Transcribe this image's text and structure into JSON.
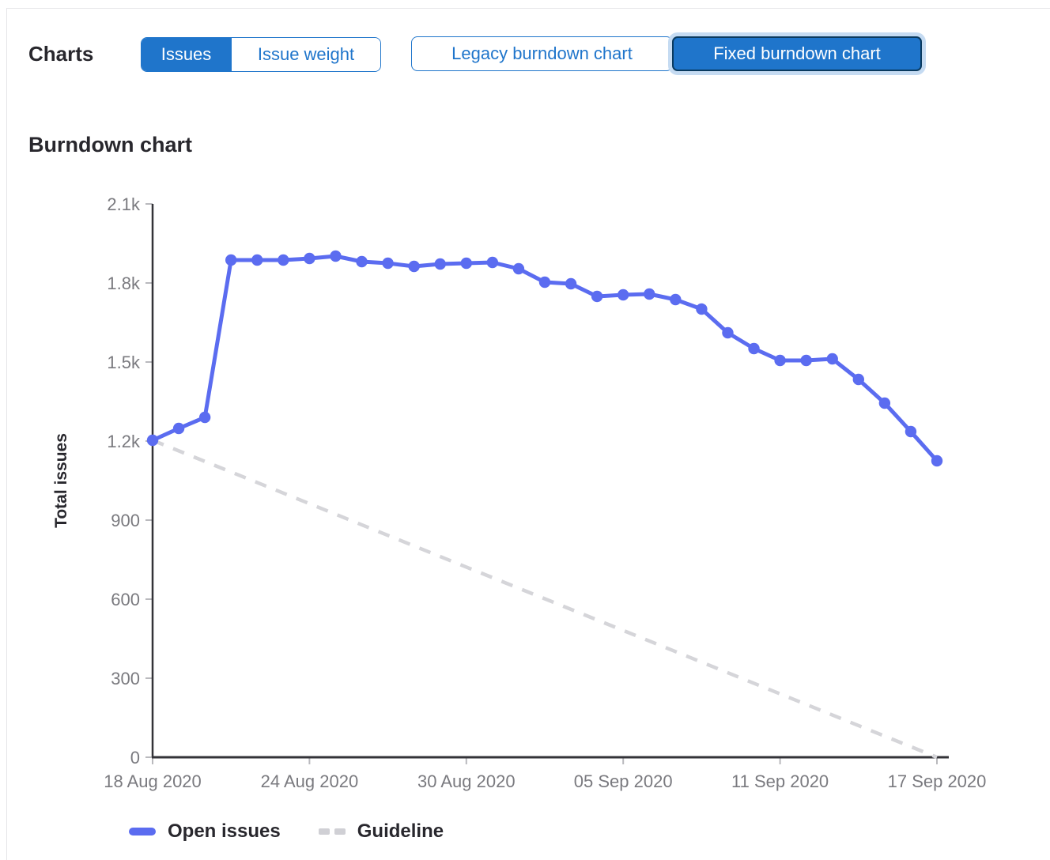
{
  "header": {
    "title": "Charts",
    "metric_toggle": {
      "options": [
        {
          "label": "Issues",
          "selected": true
        },
        {
          "label": "Issue weight",
          "selected": false
        }
      ]
    },
    "version_toggle": {
      "options": [
        {
          "label": "Legacy burndown chart",
          "selected": false
        },
        {
          "label": "Fixed burndown chart",
          "selected": true
        }
      ]
    }
  },
  "section": {
    "title": "Burndown chart"
  },
  "legend": {
    "items": [
      {
        "label": "Open issues",
        "swatch": "solid-line",
        "color": "#5b6cf0"
      },
      {
        "label": "Guideline",
        "swatch": "dashed-line",
        "color": "#d0d0d5"
      }
    ]
  },
  "colors": {
    "accent_blue": "#1f75cb",
    "selected_button_border": "#0a3a5f",
    "focus_ring": "#c5dbf2",
    "series_blue": "#5b6cf0",
    "guideline_gray": "#d5d5d9",
    "axis_line": "#333338",
    "tick_mark": "#b9b9bd",
    "tick_label": "#7a7a7f",
    "heading_text": "#28272d"
  },
  "chart_data": {
    "type": "line",
    "title": "Burndown chart",
    "xlabel": "",
    "ylabel": "Total issues",
    "ylim": [
      0,
      2100
    ],
    "grid": false,
    "legend_position": "bottom",
    "y_tick_values": [
      0,
      300,
      600,
      900,
      1200,
      1500,
      1800,
      2100
    ],
    "y_tick_labels": [
      "0",
      "300",
      "600",
      "900",
      "1.2k",
      "1.5k",
      "1.8k",
      "2.1k"
    ],
    "x_tick_labels": [
      "18 Aug 2020",
      "24 Aug 2020",
      "30 Aug 2020",
      "05 Sep 2020",
      "11 Sep 2020",
      "17 Sep 2020"
    ],
    "categories": [
      "18 Aug 2020",
      "19 Aug 2020",
      "20 Aug 2020",
      "21 Aug 2020",
      "22 Aug 2020",
      "23 Aug 2020",
      "24 Aug 2020",
      "25 Aug 2020",
      "26 Aug 2020",
      "27 Aug 2020",
      "28 Aug 2020",
      "29 Aug 2020",
      "30 Aug 2020",
      "31 Aug 2020",
      "01 Sep 2020",
      "02 Sep 2020",
      "03 Sep 2020",
      "04 Sep 2020",
      "05 Sep 2020",
      "06 Sep 2020",
      "07 Sep 2020",
      "08 Sep 2020",
      "09 Sep 2020",
      "10 Sep 2020",
      "11 Sep 2020",
      "12 Sep 2020",
      "13 Sep 2020",
      "14 Sep 2020",
      "15 Sep 2020",
      "16 Sep 2020",
      "17 Sep 2020"
    ],
    "series": [
      {
        "name": "Open issues",
        "style": "solid",
        "color": "#5b6cf0",
        "values": [
          1203,
          1248,
          1290,
          1887,
          1887,
          1887,
          1893,
          1902,
          1881,
          1875,
          1863,
          1872,
          1875,
          1878,
          1854,
          1803,
          1797,
          1749,
          1755,
          1758,
          1737,
          1701,
          1611,
          1551,
          1506,
          1506,
          1512,
          1434,
          1344,
          1236,
          1125
        ]
      },
      {
        "name": "Guideline",
        "style": "dashed",
        "color": "#d5d5d9",
        "points": [
          {
            "x": "18 Aug 2020",
            "y": 1203
          },
          {
            "x": "17 Sep 2020",
            "y": 0
          }
        ]
      }
    ]
  }
}
